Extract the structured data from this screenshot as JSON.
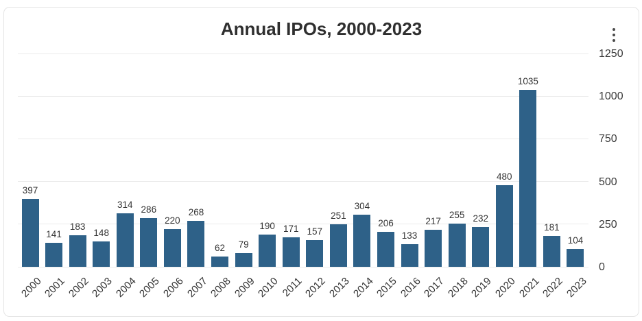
{
  "header": {
    "menu_icon": "kebab-vertical-icon"
  },
  "chart_data": {
    "type": "bar",
    "title": "Annual IPOs, 2000-2023",
    "categories": [
      "2000",
      "2001",
      "2002",
      "2003",
      "2004",
      "2005",
      "2006",
      "2007",
      "2008",
      "2009",
      "2010",
      "2011",
      "2012",
      "2013",
      "2014",
      "2015",
      "2016",
      "2017",
      "2018",
      "2019",
      "2020",
      "2021",
      "2022",
      "2023"
    ],
    "values": [
      397,
      141,
      183,
      148,
      314,
      286,
      220,
      268,
      62,
      79,
      190,
      171,
      157,
      251,
      304,
      206,
      133,
      217,
      255,
      232,
      480,
      1035,
      181,
      104
    ],
    "xlabel": "",
    "ylabel": "",
    "ylim": [
      0,
      1250
    ],
    "yticks": [
      0,
      250,
      500,
      750,
      1000,
      1250
    ],
    "y_axis_position": "right",
    "x_tick_rotation": -45,
    "grid": true,
    "legend": false,
    "value_labels_shown": true,
    "bar_color": "#2e6188",
    "gridline_color": "#eaeaea",
    "text_color": "#333333"
  }
}
